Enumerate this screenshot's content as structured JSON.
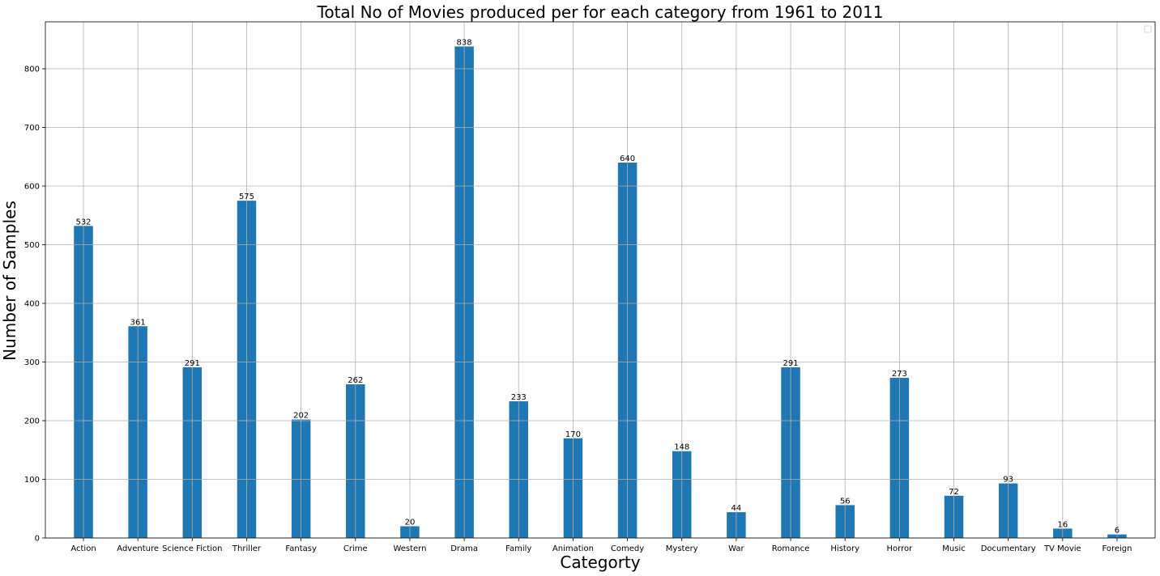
{
  "chart_data": {
    "type": "bar",
    "title": "Total No of Movies produced per for each category from 1961 to 2011",
    "xlabel": "Categorty",
    "ylabel": "Number of Samples",
    "categories": [
      "Action",
      "Adventure",
      "Science Fiction",
      "Thriller",
      "Fantasy",
      "Crime",
      "Western",
      "Drama",
      "Family",
      "Animation",
      "Comedy",
      "Mystery",
      "War",
      "Romance",
      "History",
      "Horror",
      "Music",
      "Documentary",
      "TV Movie",
      "Foreign"
    ],
    "values": [
      532,
      361,
      291,
      575,
      202,
      262,
      20,
      838,
      233,
      170,
      640,
      148,
      44,
      291,
      56,
      273,
      72,
      93,
      16,
      6
    ],
    "ylim": [
      0,
      880
    ],
    "yticks": [
      0,
      100,
      200,
      300,
      400,
      500,
      600,
      700,
      800
    ],
    "grid": true,
    "legend": "top-right",
    "bar_color": "#1f77b4",
    "grid_color": "#b0b0b0"
  }
}
